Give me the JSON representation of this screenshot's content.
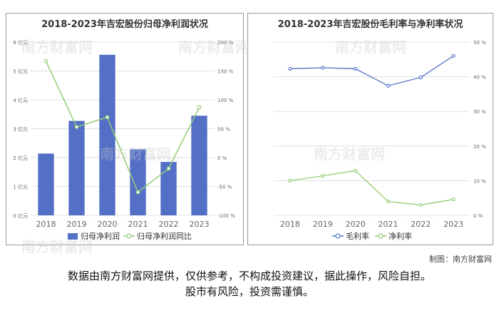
{
  "credit": "制图：南方财富网",
  "disclaimer": {
    "line1": "数据由南方财富网提供，仅供参考，不构成投资建议，据此操作，风险自担。",
    "line2": "股市有风险，投资需谨慎。"
  },
  "watermark_text": "南方财富网",
  "colors": {
    "bar": "#5470c6",
    "line_green": "#91cc75",
    "line_blue": "#5470c6",
    "grid": "#e0e0e0",
    "axis_text": "#666666"
  },
  "chart_data": [
    {
      "type": "bar",
      "title": "2018-2023年吉宏股份归母净利润状况",
      "categories": [
        "2018",
        "2019",
        "2020",
        "2021",
        "2022",
        "2023"
      ],
      "y_left": {
        "ticks": [
          "0 亿元",
          "1 亿元",
          "2 亿元",
          "3 亿元",
          "4 亿元",
          "5 亿元",
          "6 亿元"
        ],
        "min": 0,
        "max": 6
      },
      "y_right": {
        "ticks": [
          "-100 %",
          "-50 %",
          "0 %",
          "50 %",
          "100 %",
          "150 %",
          "200 %"
        ],
        "min": -100,
        "max": 200
      },
      "series": [
        {
          "name": "归母净利润",
          "type": "bar",
          "axis": "left",
          "values": [
            2.14,
            3.27,
            5.56,
            2.29,
            1.85,
            3.45
          ]
        },
        {
          "name": "归母净利润同比",
          "type": "line",
          "axis": "right",
          "values": [
            167,
            53,
            70,
            -60,
            -19,
            87
          ]
        }
      ],
      "legend": "bottom-center"
    },
    {
      "type": "line",
      "title": "2018-2023年吉宏股份毛利率与净利率状况",
      "categories": [
        "2018",
        "2019",
        "2020",
        "2021",
        "2022",
        "2023"
      ],
      "y_right": {
        "ticks": [
          "0 %",
          "10 %",
          "20 %",
          "30 %",
          "40 %",
          "50 %"
        ],
        "min": 0,
        "max": 50
      },
      "series": [
        {
          "name": "毛利率",
          "values": [
            42.3,
            42.6,
            42.3,
            37.4,
            39.8,
            46.0
          ]
        },
        {
          "name": "净利率",
          "values": [
            10.0,
            11.4,
            12.9,
            4.0,
            3.0,
            4.6
          ]
        }
      ],
      "legend": "bottom-center"
    }
  ]
}
